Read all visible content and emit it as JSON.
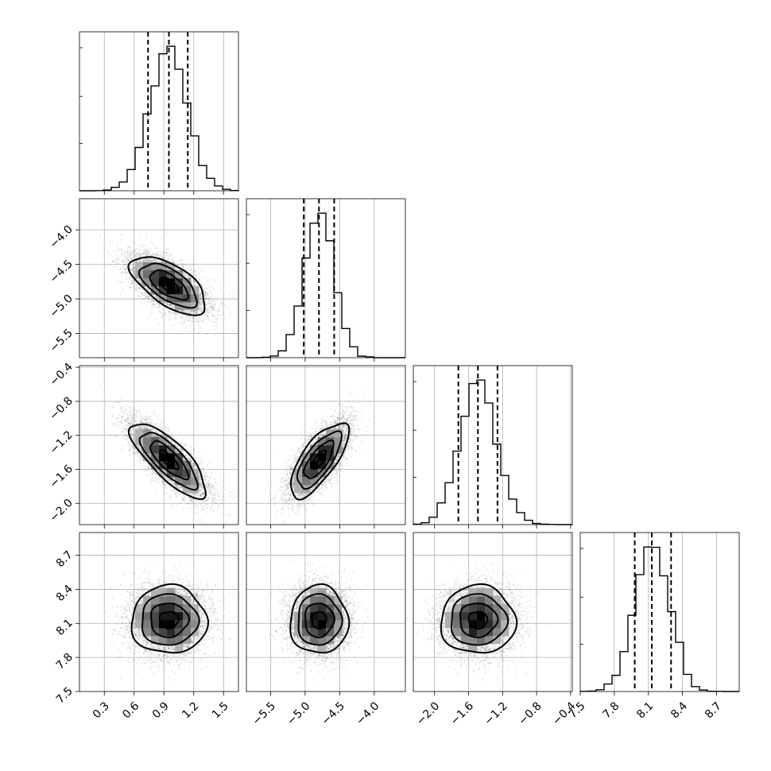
{
  "chart_data": {
    "type": "corner",
    "title": "",
    "parameters": [
      {
        "name": "",
        "range": [
          0.05,
          1.65
        ],
        "ticks": [
          0.3,
          0.6,
          0.9,
          1.2,
          1.5
        ],
        "tick_labels": [
          "0.3",
          "0.6",
          "0.9",
          "1.2",
          "1.5"
        ],
        "median": 0.95,
        "q16": 0.74,
        "q84": 1.14,
        "std": 0.19
      },
      {
        "name": "",
        "range": [
          -5.85,
          -3.55
        ],
        "ticks": [
          -5.5,
          -5.0,
          -4.5,
          -4.0
        ],
        "tick_labels": [
          "−5.5",
          "−5.0",
          "−4.5",
          "−4.0"
        ],
        "median": -4.8,
        "q16": -5.02,
        "q84": -4.58,
        "std": 0.21
      },
      {
        "name": "",
        "range": [
          -2.25,
          -0.38
        ],
        "ticks": [
          -2.0,
          -1.6,
          -1.2,
          -0.8,
          -0.4
        ],
        "tick_labels": [
          "−2.0",
          "−1.6",
          "−1.2",
          "−0.8",
          "−0.4"
        ],
        "median": -1.49,
        "q16": -1.72,
        "q84": -1.26,
        "std": 0.22
      },
      {
        "name": "",
        "range": [
          7.5,
          8.9
        ],
        "ticks": [
          7.5,
          7.8,
          8.1,
          8.4,
          8.7
        ],
        "tick_labels": [
          "7.5",
          "7.8",
          "8.1",
          "8.4",
          "8.7"
        ],
        "median": 8.13,
        "q16": 7.98,
        "q84": 8.3,
        "std": 0.15
      }
    ],
    "correlations": {
      "1-0": -0.62,
      "2-0": -0.78,
      "2-1": 0.72,
      "3-0": 0.0,
      "3-1": 0.0,
      "3-2": 0.0
    },
    "contour_levels": [
      0.5,
      1.0,
      1.5,
      2.0
    ],
    "grid": true
  }
}
